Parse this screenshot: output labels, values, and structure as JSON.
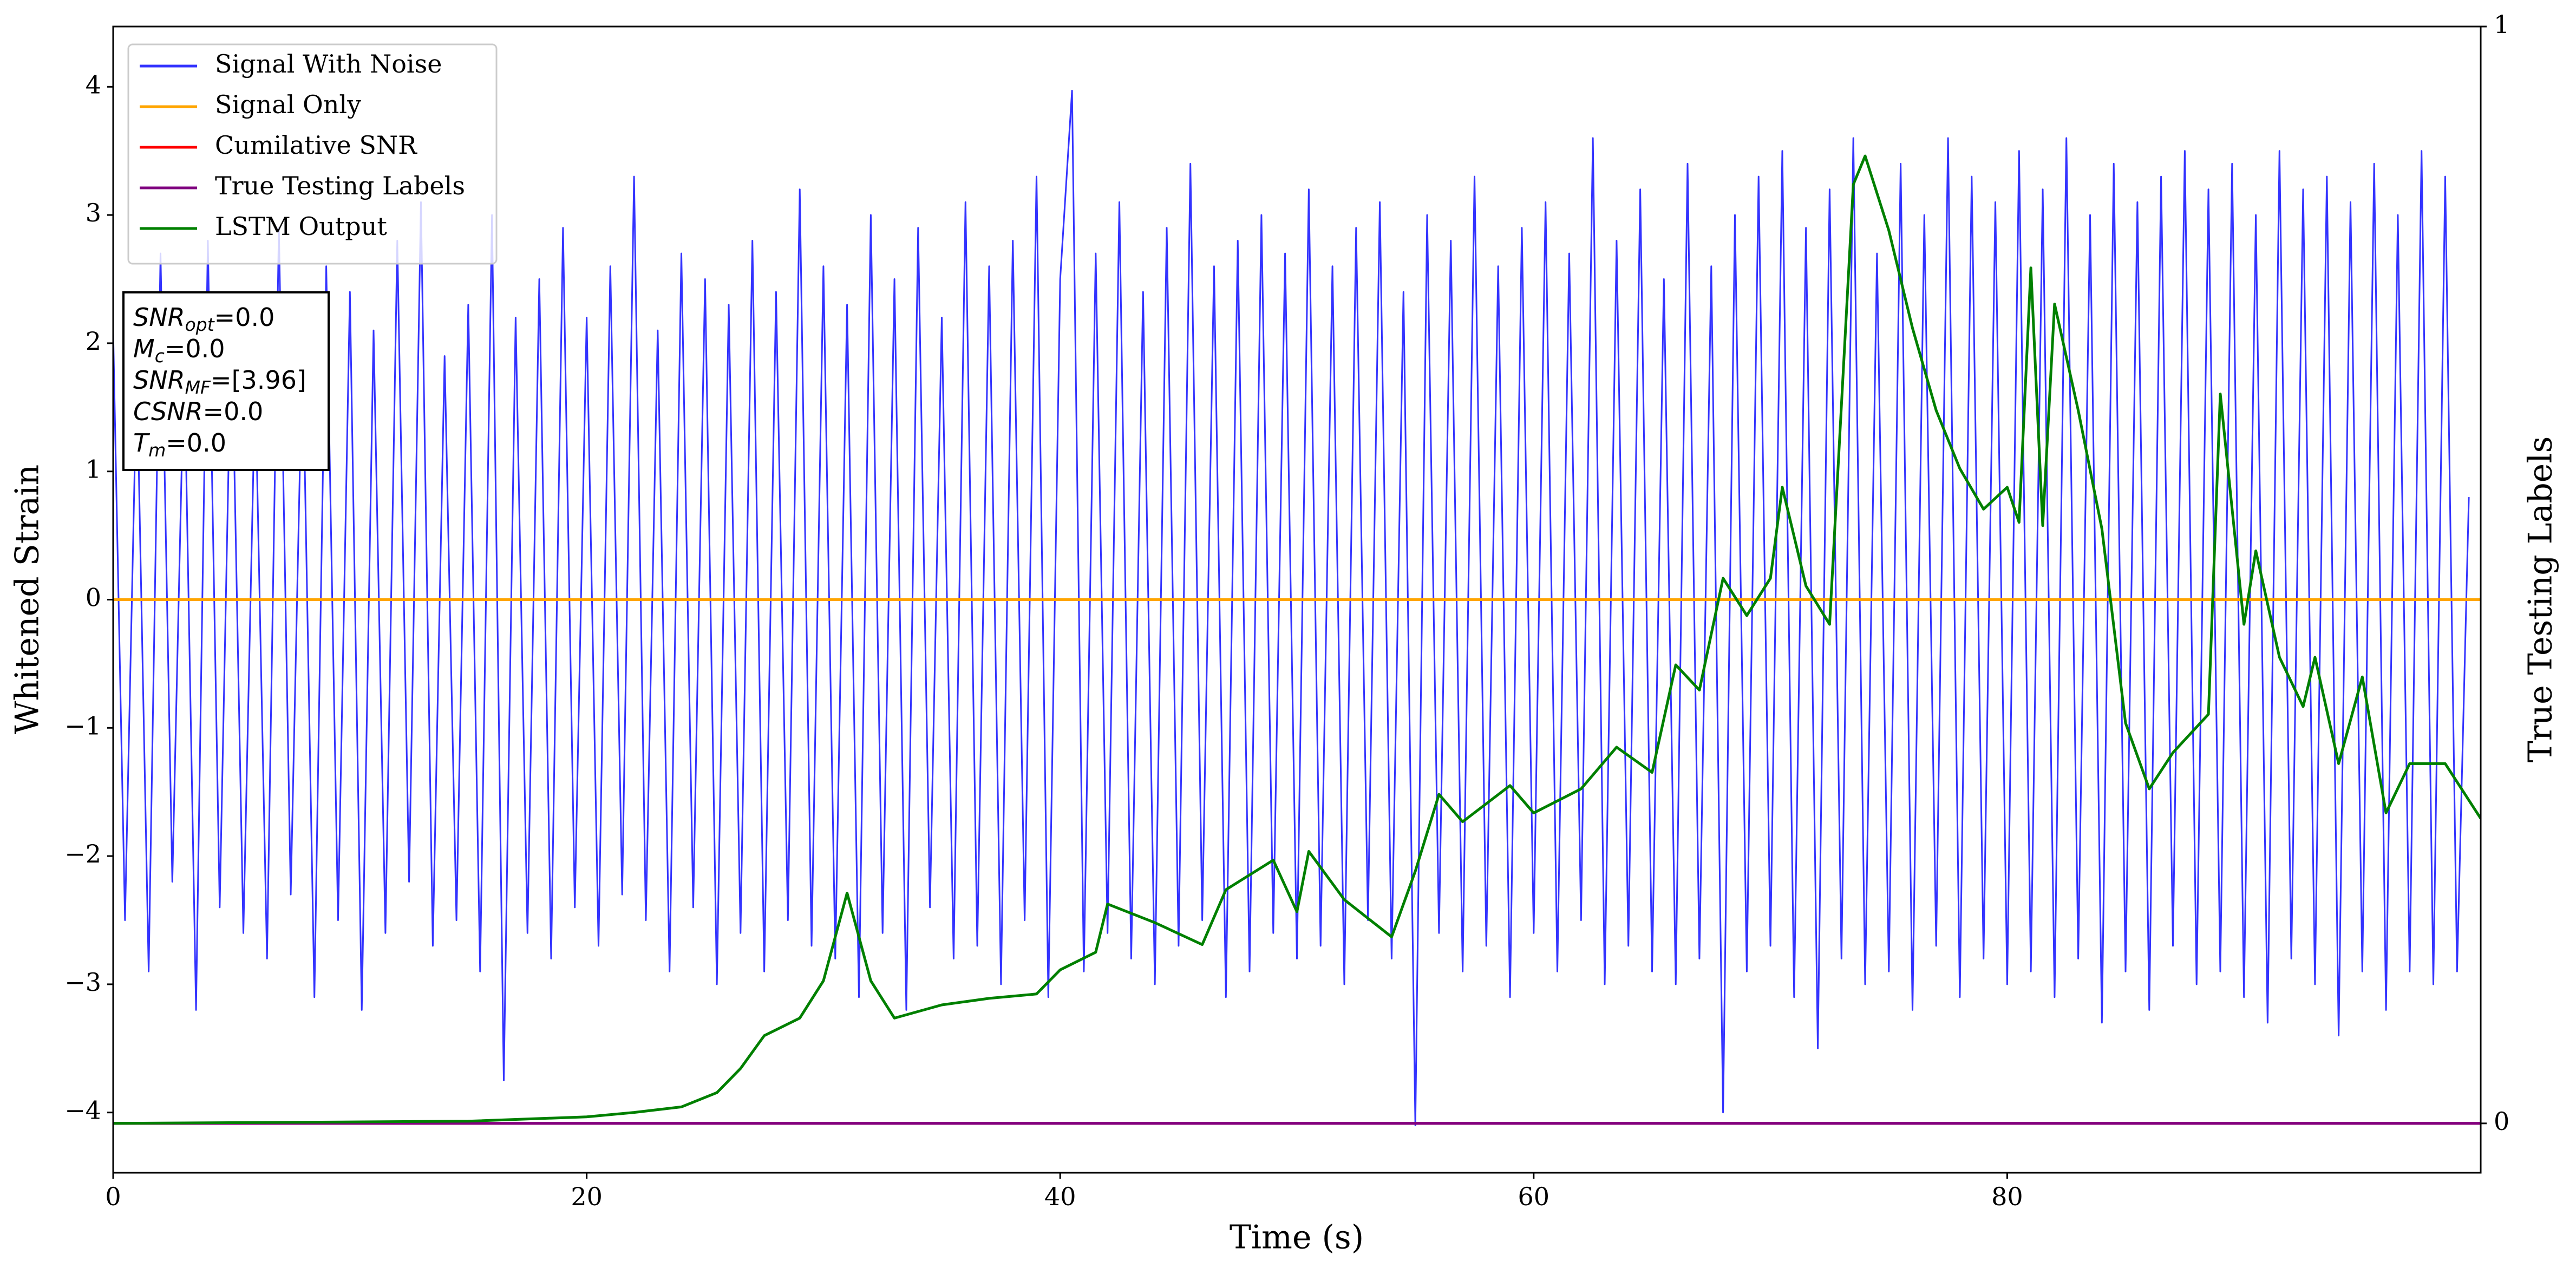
{
  "chart_data": {
    "type": "line",
    "xlabel": "Time (s)",
    "ylabel": "Whitened Strain",
    "y2label": "True Testing Labels",
    "xlim": [
      0,
      100
    ],
    "xticks": [
      0,
      20,
      40,
      60,
      80
    ],
    "ylim": [
      -4.47,
      4.47
    ],
    "yticks": [
      {
        "value": -4,
        "label": "−4"
      },
      {
        "value": -3,
        "label": "−3"
      },
      {
        "value": -2,
        "label": "−2"
      },
      {
        "value": -1,
        "label": "−1"
      },
      0,
      1,
      2,
      3,
      4
    ],
    "y2lim": [
      -0.045,
      1
    ],
    "y2ticks": [
      0,
      1
    ],
    "grid": false,
    "legend": "upper left",
    "annotation": [
      {
        "symbol": "SNR",
        "subscript": "opt",
        "text": "=0.0"
      },
      {
        "symbol": "M",
        "subscript": "c",
        "text": "=0.0"
      },
      {
        "symbol": "SNR",
        "subscript": "MF",
        "text": "=[3.96]"
      },
      {
        "symbol": "CSNR",
        "subscript": null,
        "text": "=0.0"
      },
      {
        "symbol": "T",
        "subscript": "m",
        "text": "=0.0"
      }
    ],
    "series": [
      {
        "name": "Signal With Noise",
        "color": "#3333ff",
        "axis": "y",
        "x": [
          0,
          0.5,
          1,
          1.5,
          2,
          2.5,
          3,
          3.5,
          4,
          4.5,
          5,
          5.5,
          6,
          6.5,
          7,
          7.5,
          8,
          8.5,
          9,
          9.5,
          10,
          10.5,
          11,
          11.5,
          12,
          12.5,
          13,
          13.5,
          14,
          14.5,
          15,
          15.5,
          16,
          16.5,
          17,
          17.5,
          18,
          18.5,
          19,
          19.5,
          20,
          20.5,
          21,
          21.5,
          22,
          22.5,
          23,
          23.5,
          24,
          24.5,
          25,
          25.5,
          26,
          26.5,
          27,
          27.5,
          28,
          28.5,
          29,
          29.5,
          30,
          30.5,
          31,
          31.5,
          32,
          32.5,
          33,
          33.5,
          34,
          34.5,
          35,
          35.5,
          36,
          36.5,
          37,
          37.5,
          38,
          38.5,
          39,
          39.5,
          40,
          40.5,
          41,
          41.5,
          42,
          42.5,
          43,
          43.5,
          44,
          44.5,
          45,
          45.5,
          46,
          46.5,
          47,
          47.5,
          48,
          48.5,
          49,
          49.5,
          50,
          50.5,
          51,
          51.5,
          52,
          52.5,
          53,
          53.5,
          54,
          54.5,
          55,
          55.5,
          56,
          56.5,
          57,
          57.5,
          58,
          58.5,
          59,
          59.5,
          60,
          60.5,
          61,
          61.5,
          62,
          62.5,
          63,
          63.5,
          64,
          64.5,
          65,
          65.5,
          66,
          66.5,
          67,
          67.5,
          68,
          68.5,
          69,
          69.5,
          70,
          70.5,
          71,
          71.5,
          72,
          72.5,
          73,
          73.5,
          74,
          74.5,
          75,
          75.5,
          76,
          76.5,
          77,
          77.5,
          78,
          78.5,
          79,
          79.5,
          80,
          80.5,
          81,
          81.5,
          82,
          82.5,
          83,
          83.5,
          84,
          84.5,
          85,
          85.5,
          86,
          86.5,
          87,
          87.5,
          88,
          88.5,
          89,
          89.5,
          90,
          90.5,
          91,
          91.5,
          92,
          92.5,
          93,
          93.5,
          94,
          94.5,
          95,
          95.5,
          96,
          96.5,
          97,
          97.5,
          98,
          98.5,
          99,
          99.5
        ],
        "values": [
          2.1,
          -2.5,
          1.8,
          -2.9,
          2.7,
          -2.2,
          1.9,
          -3.2,
          2.8,
          -2.4,
          2.2,
          -2.6,
          1.7,
          -2.8,
          2.9,
          -2.3,
          2.0,
          -3.1,
          2.6,
          -2.5,
          2.4,
          -3.2,
          2.1,
          -2.6,
          2.8,
          -2.2,
          3.1,
          -2.7,
          1.9,
          -2.5,
          2.3,
          -2.9,
          3.0,
          -3.75,
          2.2,
          -2.6,
          2.5,
          -2.8,
          2.9,
          -2.4,
          2.2,
          -2.7,
          2.6,
          -2.3,
          3.3,
          -2.5,
          2.1,
          -2.9,
          2.7,
          -2.4,
          2.5,
          -3.0,
          2.3,
          -2.6,
          2.8,
          -2.9,
          2.4,
          -2.5,
          3.2,
          -2.7,
          2.6,
          -2.8,
          2.3,
          -3.1,
          3.0,
          -2.6,
          2.5,
          -3.2,
          2.9,
          -2.4,
          2.2,
          -2.8,
          3.1,
          -2.7,
          2.6,
          -3.0,
          2.8,
          -2.5,
          3.3,
          -3.1,
          2.5,
          3.97,
          -2.9,
          2.7,
          -2.6,
          3.1,
          -2.8,
          2.4,
          -3.0,
          2.9,
          -2.7,
          3.4,
          -2.5,
          2.6,
          -3.1,
          2.8,
          -2.9,
          3.0,
          -2.6,
          2.7,
          -2.8,
          3.2,
          -2.7,
          2.6,
          -3.0,
          2.9,
          -2.5,
          3.1,
          -2.8,
          2.4,
          -4.1,
          3.0,
          -2.6,
          2.8,
          -2.9,
          3.3,
          -2.7,
          2.6,
          -3.1,
          2.9,
          -2.6,
          3.1,
          -2.9,
          2.7,
          -2.5,
          3.6,
          -3.0,
          2.8,
          -2.7,
          3.2,
          -2.9,
          2.5,
          -3.0,
          3.4,
          -2.8,
          2.6,
          -4.0,
          3.0,
          -2.9,
          3.3,
          -2.7,
          3.5,
          -3.1,
          2.9,
          -3.5,
          3.2,
          -2.8,
          3.6,
          -3.0,
          2.7,
          -2.9,
          3.4,
          -3.2,
          3.0,
          -2.7,
          3.6,
          -3.1,
          3.3,
          -2.8,
          3.1,
          -3.0,
          3.5,
          -2.9,
          3.2,
          -3.1,
          3.6,
          -2.8,
          3.0,
          -3.3,
          3.4,
          -2.9,
          3.1,
          -3.2,
          3.3,
          -2.7,
          3.5,
          -3.0,
          3.2,
          -2.9,
          3.4,
          -3.1,
          3.0,
          -3.3,
          3.5,
          -2.8,
          3.2,
          -3.0,
          3.3,
          -3.4,
          3.1,
          -2.9,
          3.4,
          -3.2,
          3.0,
          -2.9,
          3.5,
          -3.0,
          3.3,
          -2.9,
          0.8
        ]
      },
      {
        "name": "Signal Only",
        "color": "#ffa500",
        "axis": "y",
        "x": [
          0,
          100
        ],
        "values": [
          0,
          0
        ]
      },
      {
        "name": "Cumilative SNR",
        "color": "#ff0000",
        "axis": "y2",
        "x": [
          0,
          100
        ],
        "values": [
          0,
          0
        ]
      },
      {
        "name": "True Testing Labels",
        "color": "#800080",
        "axis": "y2",
        "x": [
          0,
          100
        ],
        "values": [
          0,
          0
        ]
      },
      {
        "name": "LSTM Output",
        "color": "#008000",
        "axis": "y2",
        "x": [
          0,
          15,
          20,
          22,
          24,
          25.5,
          26.5,
          27.5,
          29,
          30,
          31,
          32,
          33,
          35,
          37,
          39,
          40,
          41.5,
          42,
          44,
          46,
          47,
          49,
          50,
          50.5,
          52,
          54,
          55,
          56,
          57,
          59,
          60,
          62,
          63.5,
          65,
          66,
          67,
          68,
          69,
          70,
          70.5,
          71.5,
          72.5,
          73.5,
          74,
          75,
          76,
          77,
          78,
          79,
          80,
          80.5,
          81,
          81.5,
          82,
          83,
          84,
          85,
          86,
          87,
          88.5,
          89,
          90,
          90.5,
          91.5,
          92.5,
          93,
          94,
          95,
          96,
          97,
          98.5,
          100
        ],
        "values": [
          0,
          0.002,
          0.006,
          0.01,
          0.015,
          0.028,
          0.05,
          0.08,
          0.096,
          0.13,
          0.21,
          0.13,
          0.096,
          0.108,
          0.114,
          0.118,
          0.14,
          0.156,
          0.2,
          0.183,
          0.163,
          0.213,
          0.24,
          0.193,
          0.248,
          0.204,
          0.17,
          0.23,
          0.3,
          0.275,
          0.308,
          0.283,
          0.305,
          0.343,
          0.32,
          0.418,
          0.395,
          0.497,
          0.463,
          0.497,
          0.58,
          0.49,
          0.455,
          0.856,
          0.882,
          0.814,
          0.725,
          0.65,
          0.597,
          0.56,
          0.58,
          0.548,
          0.78,
          0.545,
          0.747,
          0.65,
          0.542,
          0.365,
          0.305,
          0.338,
          0.373,
          0.665,
          0.455,
          0.522,
          0.425,
          0.38,
          0.425,
          0.328,
          0.407,
          0.283,
          0.328,
          0.328,
          0.278
        ]
      }
    ]
  }
}
